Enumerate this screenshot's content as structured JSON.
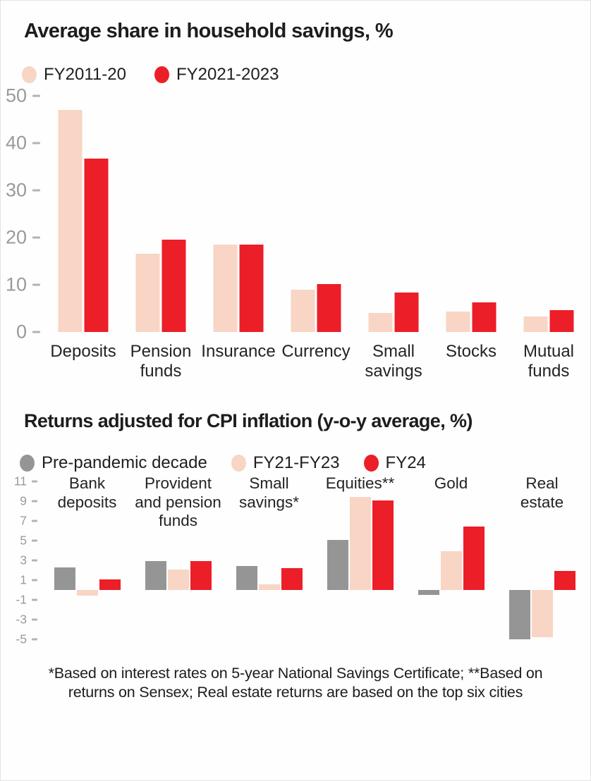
{
  "footnote": "*Based on interest rates on 5-year National Savings Certificate; **Based on returns on Sensex; Real estate returns are based on the top six cities",
  "colors": {
    "peach": "#f8d5c4",
    "red": "#ec1e28",
    "gray": "#959595",
    "axis_text": "#9a9a9a",
    "title_text": "#1d1d1d"
  },
  "chart_data": [
    {
      "type": "bar",
      "title": "Average share in household savings, %",
      "categories": [
        "Deposits",
        "Pension funds",
        "Insurance",
        "Currency",
        "Small savings",
        "Stocks",
        "Mutual funds"
      ],
      "category_lines": [
        [
          "Deposits"
        ],
        [
          "Pension",
          "funds"
        ],
        [
          "Insurance"
        ],
        [
          "Currency"
        ],
        [
          "Small",
          "savings"
        ],
        [
          "Stocks"
        ],
        [
          "Mutual",
          "funds"
        ]
      ],
      "series": [
        {
          "name": "FY2011-20",
          "color": "#f8d5c4",
          "values": [
            47,
            16.5,
            18.5,
            9,
            4,
            4.3,
            3.3
          ]
        },
        {
          "name": "FY2021-2023",
          "color": "#ec1e28",
          "values": [
            36.7,
            19.5,
            18.5,
            10.2,
            8.3,
            6.2,
            4.7
          ]
        }
      ],
      "xlabel": "",
      "ylabel": "",
      "ylim": [
        0,
        50
      ],
      "yticks": [
        50,
        40,
        30,
        20,
        10,
        0
      ],
      "grid": false,
      "legend_position": "top"
    },
    {
      "type": "bar",
      "title": "Returns adjusted for CPI inflation (y-o-y average, %)",
      "categories": [
        "Bank deposits",
        "Provident and pension funds",
        "Small savings*",
        "Equities**",
        "Gold",
        "Real estate"
      ],
      "category_lines": [
        [
          "Bank",
          "deposits"
        ],
        [
          "Provident",
          "and pension",
          "funds"
        ],
        [
          "Small",
          "savings*"
        ],
        [
          "Equities**"
        ],
        [
          "Gold"
        ],
        [
          "Real",
          "estate"
        ]
      ],
      "series": [
        {
          "name": "Pre-pandemic decade",
          "color": "#959595",
          "values": [
            2.3,
            2.9,
            2.4,
            5.1,
            -0.5,
            -5
          ]
        },
        {
          "name": "FY21-FY23",
          "color": "#f8d5c4",
          "values": [
            -0.6,
            2.1,
            0.6,
            9.4,
            3.9,
            -4.8
          ]
        },
        {
          "name": "FY24",
          "color": "#ec1e28",
          "values": [
            1.1,
            2.9,
            2.2,
            9.1,
            6.4,
            1.9
          ]
        }
      ],
      "xlabel": "",
      "ylabel": "",
      "ylim": [
        -5,
        11
      ],
      "yticks": [
        11,
        9,
        7,
        5,
        3,
        1,
        -1,
        -3,
        -5
      ],
      "grid": false,
      "legend_position": "top"
    }
  ]
}
